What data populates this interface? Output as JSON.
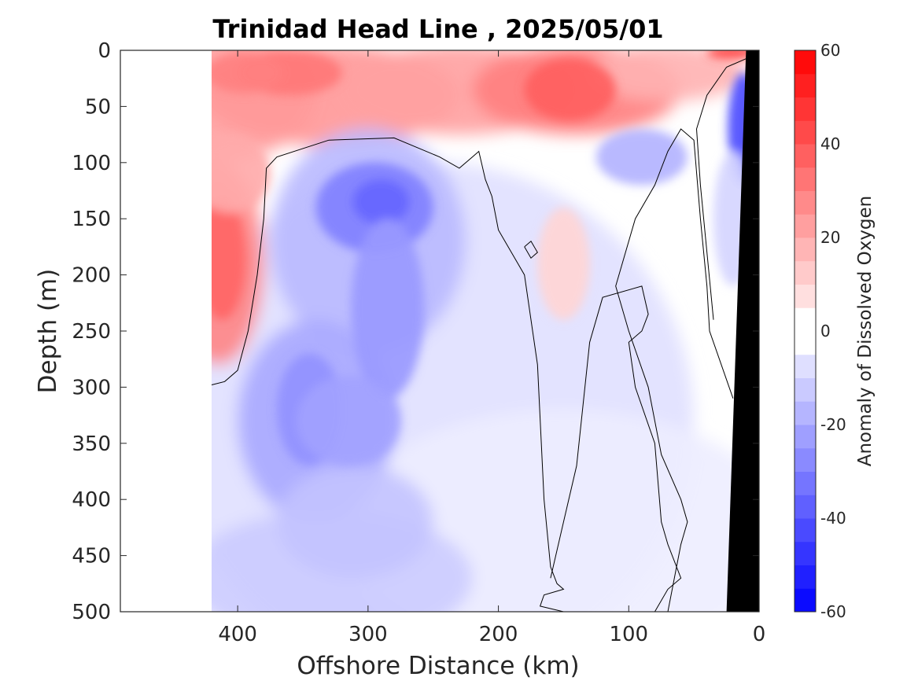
{
  "chart_data": {
    "type": "heatmap",
    "title": "Trinidad Head Line , 2025/05/01",
    "xlabel": "Offshore Distance (km)",
    "ylabel": "Depth (m)",
    "x_ticks": [
      400,
      300,
      200,
      100,
      0
    ],
    "y_ticks": [
      0,
      50,
      100,
      150,
      200,
      250,
      300,
      350,
      400,
      450,
      500
    ],
    "xlim": [
      490,
      0
    ],
    "ylim": [
      0,
      500
    ],
    "x_reversed": true,
    "y_reversed": true,
    "colorbar": {
      "label": "Anomaly of Dissolved Oxygen",
      "range": [
        -60,
        60
      ],
      "ticks": [
        60,
        40,
        20,
        0,
        -20,
        -40,
        -60
      ],
      "colormap": "blue-white-red",
      "levels": [
        -60,
        -55,
        -50,
        -45,
        -40,
        -35,
        -30,
        -25,
        -20,
        -15,
        -10,
        -5,
        0,
        5,
        10,
        15,
        20,
        25,
        30,
        35,
        40,
        45,
        50,
        55,
        60
      ],
      "color_negative": "#0000ff",
      "color_zero": "#ffffff",
      "color_positive": "#ff0000"
    },
    "data_extent_km": [
      0,
      420
    ],
    "bathymetry": {
      "color": "#000000",
      "x": [
        0,
        10,
        25,
        0
      ],
      "y": [
        0,
        0,
        500,
        500
      ]
    },
    "contour_levels": [
      0
    ],
    "features": [
      {
        "name": "surface positive anomaly",
        "x_range": [
          420,
          30
        ],
        "y_range": [
          0,
          100
        ],
        "peak_value": 40
      },
      {
        "name": "subsurface negative anomaly core",
        "x": 290,
        "y": 140,
        "peak_value": -35
      },
      {
        "name": "deep negative lobe",
        "x": 340,
        "y": 320,
        "peak_value": -25
      },
      {
        "name": "western positive anomaly",
        "x": 410,
        "y": 180,
        "peak_value": 35
      },
      {
        "name": "nearshore negative anomaly",
        "x": 10,
        "y": 60,
        "peak_value": -40
      }
    ]
  }
}
